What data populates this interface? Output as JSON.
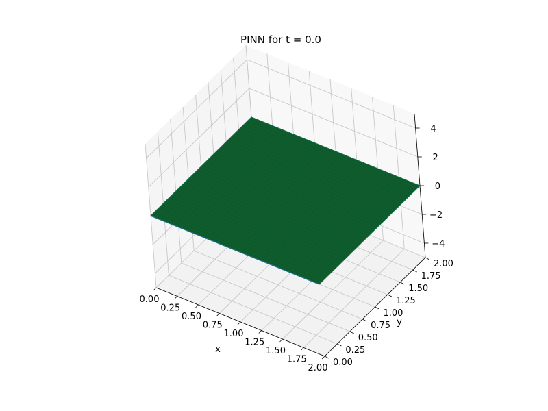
{
  "chart_data": {
    "type": "surface3d",
    "title": "PINN for t = 0.0",
    "xlabel": "x",
    "ylabel": "y",
    "zlabel": "",
    "xlim": [
      0,
      2
    ],
    "ylim": [
      0,
      2
    ],
    "zlim": [
      -5,
      5
    ],
    "xticks": [
      "0.00",
      "0.25",
      "0.50",
      "0.75",
      "1.00",
      "1.25",
      "1.50",
      "1.75",
      "2.00"
    ],
    "yticks": [
      "0.00",
      "0.25",
      "0.50",
      "0.75",
      "1.00",
      "1.25",
      "1.50",
      "1.75",
      "2.00"
    ],
    "zticks": [
      "−4",
      "−2",
      "0",
      "2",
      "4"
    ],
    "grid": true,
    "surface": {
      "description_value": "u(x, y, t=0) = 0 over the whole domain",
      "x_range": [
        0,
        2
      ],
      "y_range": [
        0,
        2
      ],
      "z_value": 0,
      "color": "#0e5a2a",
      "edge_color": "#13704a"
    }
  }
}
